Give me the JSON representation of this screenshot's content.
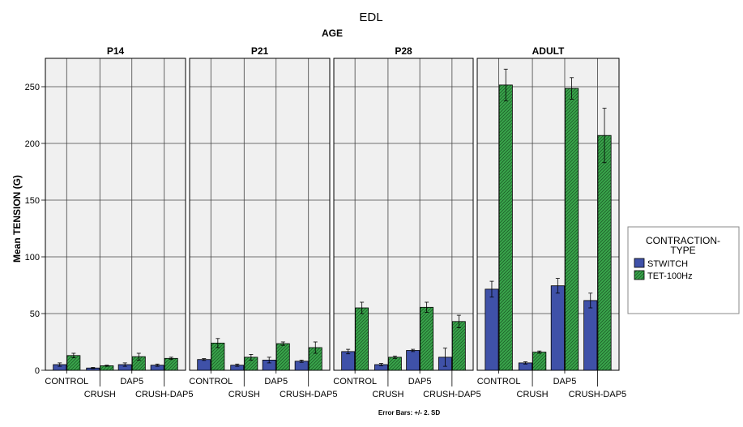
{
  "chart_data": {
    "type": "bar",
    "title": "EDL",
    "panel_group_label": "AGE",
    "panels": [
      "P14",
      "P21",
      "P28",
      "ADULT"
    ],
    "categories": [
      "CONTROL",
      "CRUSH",
      "DAP5",
      "CRUSH-DAP5"
    ],
    "ylabel": "Mean TENSION (G)",
    "ylim": [
      0,
      275
    ],
    "yticks": [
      0,
      50,
      100,
      150,
      200,
      250
    ],
    "grid": true,
    "footnote": "Error Bars: +/- 2. SD",
    "legend": {
      "title_lines": [
        "CONTRACTION-",
        "TYPE"
      ],
      "placement": "right"
    },
    "series": [
      {
        "name": "STWITCH",
        "color": "#3f51a8",
        "pattern": "solid",
        "values": {
          "P14": [
            5,
            2,
            5,
            4.5
          ],
          "P21": [
            9.5,
            4.5,
            9,
            8
          ],
          "P28": [
            16.5,
            5,
            17.5,
            11.5
          ],
          "ADULT": [
            71.5,
            6.5,
            74.5,
            61.5
          ]
        },
        "errors": {
          "P14": [
            1.5,
            0.5,
            1.5,
            1
          ],
          "P21": [
            0.8,
            1,
            2.5,
            1
          ],
          "P28": [
            2,
            1,
            1,
            8
          ],
          "ADULT": [
            7,
            1,
            6.5,
            6.5
          ]
        }
      },
      {
        "name": "TET-100Hz",
        "color": "#3aa64c",
        "pattern": "diagonal-hatch",
        "values": {
          "P14": [
            13,
            4,
            12,
            10.5
          ],
          "P21": [
            24,
            11.5,
            23.5,
            20
          ],
          "P28": [
            55,
            11.5,
            55.5,
            43
          ],
          "ADULT": [
            251.5,
            16,
            248.5,
            207
          ]
        },
        "errors": {
          "P14": [
            2,
            0.5,
            3,
            1
          ],
          "P21": [
            4,
            2.5,
            1.5,
            5
          ],
          "P28": [
            5,
            1,
            4.5,
            5.5
          ],
          "ADULT": [
            14,
            1,
            9.5,
            24
          ]
        }
      }
    ]
  }
}
